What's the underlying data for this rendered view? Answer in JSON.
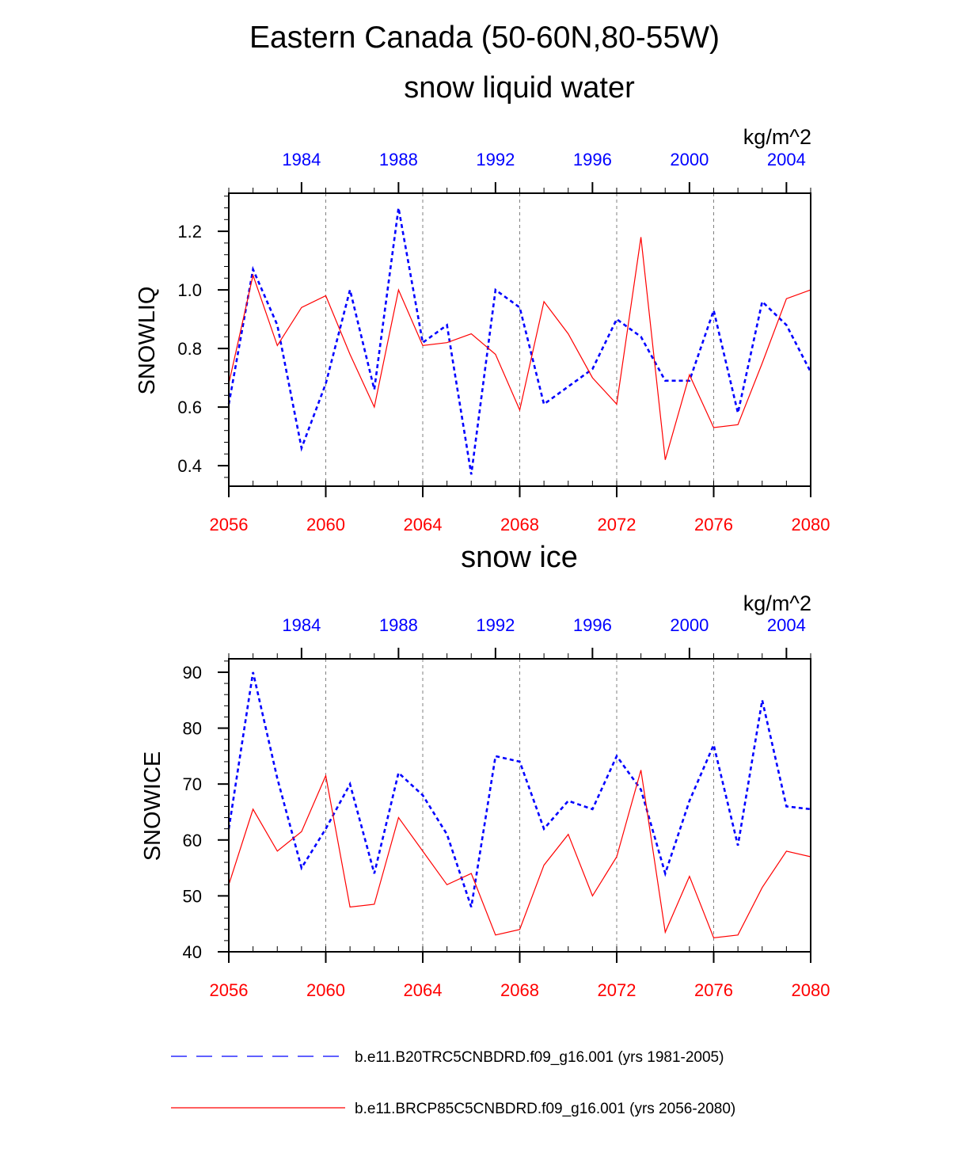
{
  "title": "Eastern Canada (50-60N,80-55W)",
  "colors": {
    "historical": "#0000ff",
    "future": "#ff0000",
    "axis": "#000000",
    "grid": "#808080"
  },
  "legend": [
    {
      "label": "b.e11.B20TRC5CNBDRD.f09_g16.001 (yrs 1981-2005)",
      "color": "#0000ff",
      "style": "dashed"
    },
    {
      "label": "b.e11.BRCP85C5CNBDRD.f09_g16.001 (yrs 2056-2080)",
      "color": "#ff0000",
      "style": "solid"
    }
  ],
  "chart_data": [
    {
      "type": "line",
      "subtitle": "snow liquid water",
      "units": "kg/m^2",
      "ylabel": "SNOWLIQ",
      "ylim": [
        0.33,
        1.33
      ],
      "yticks": [
        0.4,
        0.6,
        0.8,
        1.0,
        1.2
      ],
      "ytick_labels": [
        "0.4",
        "0.6",
        "0.8",
        "1.0",
        "1.2"
      ],
      "xlim_bottom": [
        2056,
        2080
      ],
      "xticks_bottom": [
        "2056",
        "2060",
        "2064",
        "2068",
        "2072",
        "2076",
        "2080"
      ],
      "xlim_top": [
        1981,
        2005
      ],
      "xticks_top": [
        "1984",
        "1988",
        "1992",
        "1996",
        "2000",
        "2004"
      ],
      "grid": "dashed vertical at bottom major ticks",
      "series": [
        {
          "color": "#0000ff",
          "style": "dashed",
          "x": [
            1981,
            1982,
            1983,
            1984,
            1985,
            1986,
            1987,
            1988,
            1989,
            1990,
            1991,
            1992,
            1993,
            1994,
            1995,
            1996,
            1997,
            1998,
            1999,
            2000,
            2001,
            2002,
            2003,
            2004,
            2005
          ],
          "values": [
            0.61,
            1.07,
            0.88,
            0.46,
            0.68,
            1.0,
            0.66,
            1.28,
            0.82,
            0.88,
            0.37,
            1.0,
            0.94,
            0.61,
            0.67,
            0.73,
            0.9,
            0.84,
            0.69,
            0.69,
            0.93,
            0.58,
            0.96,
            0.88,
            0.72
          ]
        },
        {
          "color": "#ff0000",
          "style": "solid",
          "x": [
            2056,
            2057,
            2058,
            2059,
            2060,
            2061,
            2062,
            2063,
            2064,
            2065,
            2066,
            2067,
            2068,
            2069,
            2070,
            2071,
            2072,
            2073,
            2074,
            2075,
            2076,
            2077,
            2078,
            2079,
            2080
          ],
          "values": [
            0.68,
            1.05,
            0.81,
            0.94,
            0.98,
            0.78,
            0.6,
            1.0,
            0.81,
            0.82,
            0.85,
            0.78,
            0.59,
            0.96,
            0.85,
            0.7,
            0.61,
            1.18,
            0.42,
            0.71,
            0.53,
            0.54,
            0.75,
            0.97,
            1.0
          ]
        }
      ]
    },
    {
      "type": "line",
      "subtitle": "snow ice",
      "units": "kg/m^2",
      "ylabel": "SNOWICE",
      "ylim": [
        40,
        92.4
      ],
      "yticks": [
        40,
        50,
        60,
        70,
        80,
        90
      ],
      "ytick_labels": [
        "40",
        "50",
        "60",
        "70",
        "80",
        "90"
      ],
      "xlim_bottom": [
        2056,
        2080
      ],
      "xticks_bottom": [
        "2056",
        "2060",
        "2064",
        "2068",
        "2072",
        "2076",
        "2080"
      ],
      "xlim_top": [
        1981,
        2005
      ],
      "xticks_top": [
        "1984",
        "1988",
        "1992",
        "1996",
        "2000",
        "2004"
      ],
      "grid": "dashed vertical at bottom major ticks",
      "series": [
        {
          "color": "#0000ff",
          "style": "dashed",
          "x": [
            1981,
            1982,
            1983,
            1984,
            1985,
            1986,
            1987,
            1988,
            1989,
            1990,
            1991,
            1992,
            1993,
            1994,
            1995,
            1996,
            1997,
            1998,
            1999,
            2000,
            2001,
            2002,
            2003,
            2004,
            2005
          ],
          "values": [
            62,
            90,
            71,
            55,
            62,
            70,
            54,
            72,
            68,
            61,
            48,
            75,
            74,
            62,
            67,
            65.5,
            75,
            69,
            54,
            67,
            77,
            59,
            85,
            66,
            65.5
          ]
        },
        {
          "color": "#ff0000",
          "style": "solid",
          "x": [
            2056,
            2057,
            2058,
            2059,
            2060,
            2061,
            2062,
            2063,
            2064,
            2065,
            2066,
            2067,
            2068,
            2069,
            2070,
            2071,
            2072,
            2073,
            2074,
            2075,
            2076,
            2077,
            2078,
            2079,
            2080
          ],
          "values": [
            52,
            65.5,
            58,
            61.5,
            71.5,
            48,
            48.5,
            64,
            58,
            52,
            54,
            43,
            44,
            55.5,
            61,
            50,
            57,
            72.5,
            43.5,
            53.5,
            42.5,
            43,
            51.5,
            58,
            57
          ]
        }
      ]
    }
  ]
}
